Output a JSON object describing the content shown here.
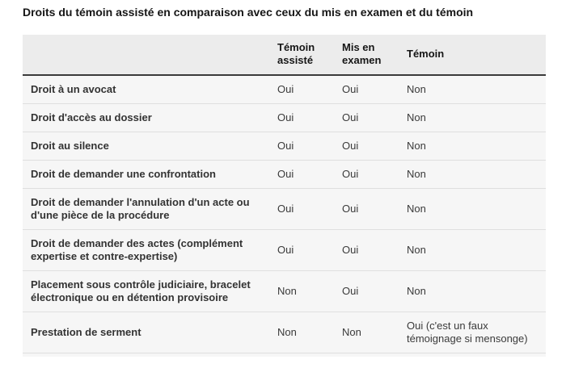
{
  "title": "Droits du témoin assisté en comparaison avec ceux du mis en examen et du témoin",
  "table": {
    "columns": {
      "col1": "",
      "col2": "Témoin assisté",
      "col3": "Mis en examen",
      "col4": "Témoin"
    },
    "rows": [
      {
        "label": "Droit à un avocat",
        "values": [
          "Oui",
          "Oui",
          "Non"
        ]
      },
      {
        "label": "Droit d'accès au dossier",
        "values": [
          "Oui",
          "Oui",
          "Non"
        ]
      },
      {
        "label": "Droit au silence",
        "values": [
          "Oui",
          "Oui",
          "Non"
        ]
      },
      {
        "label": "Droit de demander une confrontation",
        "values": [
          "Oui",
          "Oui",
          "Non"
        ]
      },
      {
        "label": "Droit de demander l'annulation d'un acte ou d'une pièce de la procédure",
        "values": [
          "Oui",
          "Oui",
          "Non"
        ]
      },
      {
        "label": "Droit de demander des actes (complément expertise et contre-expertise)",
        "values": [
          "Oui",
          "Oui",
          "Non"
        ]
      },
      {
        "label": "Placement sous contrôle judiciaire, bracelet électronique ou en détention provisoire",
        "values": [
          "Non",
          "Oui",
          "Non"
        ]
      },
      {
        "label": "Prestation de serment",
        "values": [
          "Non",
          "Non",
          "Oui (c'est un faux témoignage si mensonge)"
        ]
      }
    ]
  },
  "colors": {
    "page_background": "#ffffff",
    "header_background": "#ececec",
    "table_background": "#f6f6f6",
    "header_border": "#3a3a3a",
    "row_separator": "#dfdfdf",
    "title_text": "#161616",
    "body_text": "#3a3a3a"
  }
}
